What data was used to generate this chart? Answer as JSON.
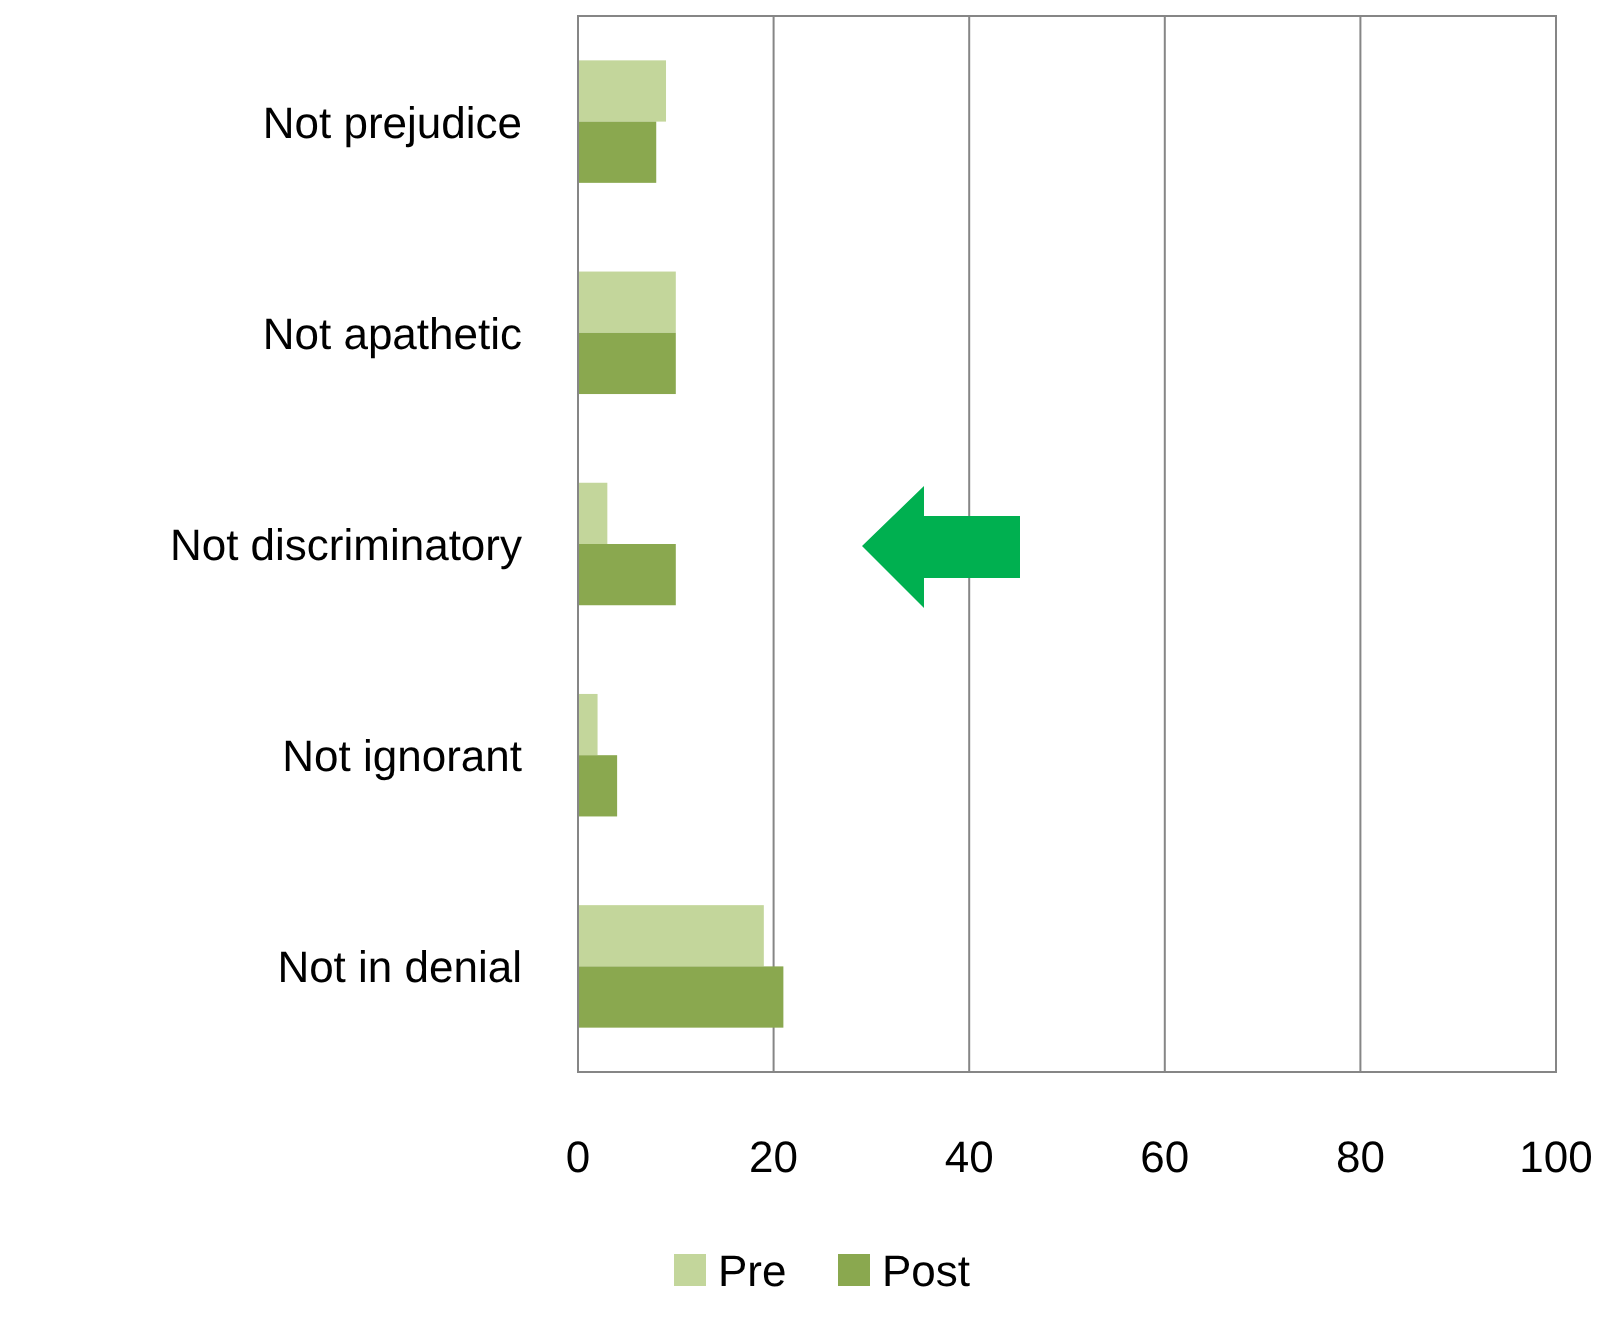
{
  "chart_data": {
    "type": "bar",
    "orientation": "horizontal",
    "categories": [
      "Not prejudice",
      "Not apathetic",
      "Not discriminatory",
      "Not ignorant",
      "Not in denial"
    ],
    "series": [
      {
        "name": "Pre",
        "color": "#c3d69b",
        "values": [
          9,
          10,
          3,
          2,
          19
        ]
      },
      {
        "name": "Post",
        "color": "#8aa84f",
        "values": [
          8,
          10,
          10,
          4,
          21
        ]
      }
    ],
    "xlim": [
      0,
      100
    ],
    "xticks": [
      0,
      20,
      40,
      60,
      80,
      100
    ],
    "grid": "x",
    "legend": "bottom"
  }
}
